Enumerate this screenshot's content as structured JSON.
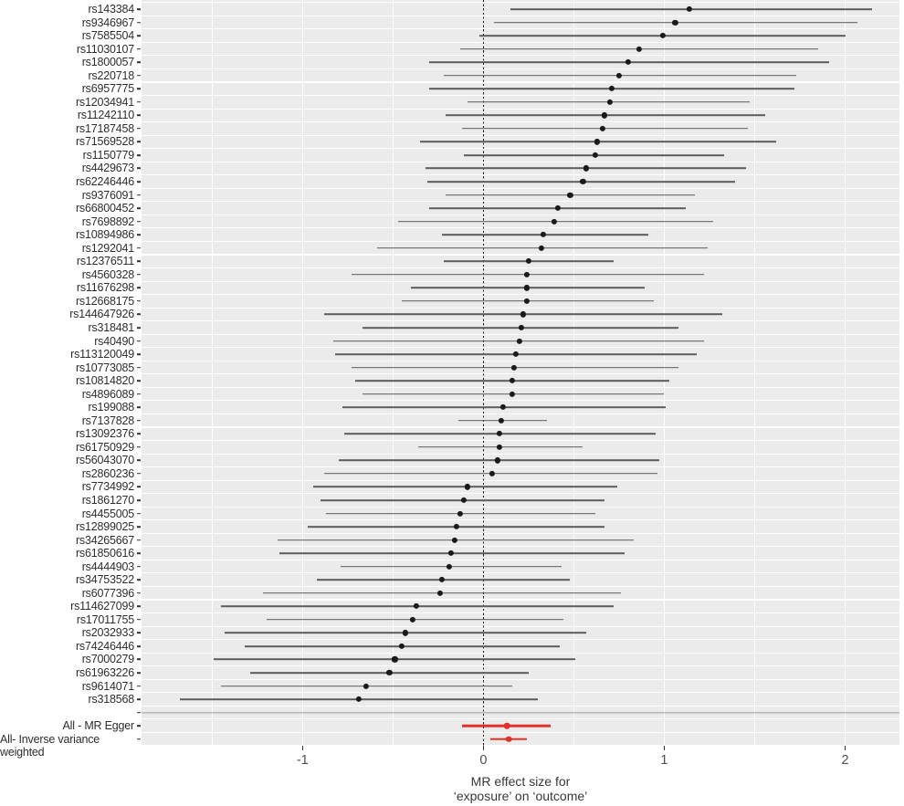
{
  "figure": {
    "kind": "mendelian-randomization-forest-plot",
    "colors": {
      "page_background": "#ffffff",
      "panel_background": "#ebebeb",
      "grid": "#ffffff",
      "ci_line": "#5c5c5c",
      "point": "#1a1a1a",
      "highlight": "#e0312b",
      "separator": "#9b9b9b",
      "zero_line": "#151515",
      "axis_text": "#4d4d4d",
      "label_text": "#2e2e2e"
    }
  },
  "chart_data": {
    "type": "scatter",
    "variant": "horizontal-forest-plot-with-error-bars",
    "title": "",
    "xlabel_lines": [
      "MR effect size for",
      "‘exposure’ on ‘outcome’"
    ],
    "ylabel": "",
    "x_ticks": [
      -1,
      0,
      1,
      2
    ],
    "xlim": [
      -1.89,
      2.3
    ],
    "zero_reference_line": 0,
    "grid": "on",
    "legend": "none",
    "rows": [
      {
        "label": "rs143384",
        "b": 1.14,
        "lo": 0.15,
        "hi": 2.15,
        "group": "snp"
      },
      {
        "label": "rs9346967",
        "b": 1.06,
        "lo": 0.06,
        "hi": 2.07,
        "group": "snp"
      },
      {
        "label": "rs7585504",
        "b": 0.99,
        "lo": -0.02,
        "hi": 2.0,
        "group": "snp"
      },
      {
        "label": "rs11030107",
        "b": 0.86,
        "lo": -0.13,
        "hi": 1.85,
        "group": "snp"
      },
      {
        "label": "rs1800057",
        "b": 0.8,
        "lo": -0.3,
        "hi": 1.91,
        "group": "snp"
      },
      {
        "label": "rs220718",
        "b": 0.75,
        "lo": -0.22,
        "hi": 1.73,
        "group": "snp"
      },
      {
        "label": "rs6957775",
        "b": 0.71,
        "lo": -0.3,
        "hi": 1.72,
        "group": "snp"
      },
      {
        "label": "rs12034941",
        "b": 0.7,
        "lo": -0.09,
        "hi": 1.47,
        "group": "snp"
      },
      {
        "label": "rs11242110",
        "b": 0.67,
        "lo": -0.21,
        "hi": 1.56,
        "group": "snp"
      },
      {
        "label": "rs17187458",
        "b": 0.66,
        "lo": -0.12,
        "hi": 1.46,
        "group": "snp"
      },
      {
        "label": "rs71569528",
        "b": 0.63,
        "lo": -0.35,
        "hi": 1.62,
        "group": "snp"
      },
      {
        "label": "rs1150779",
        "b": 0.62,
        "lo": -0.11,
        "hi": 1.33,
        "group": "snp"
      },
      {
        "label": "rs4429673",
        "b": 0.57,
        "lo": -0.32,
        "hi": 1.45,
        "group": "snp"
      },
      {
        "label": "rs62246446",
        "b": 0.55,
        "lo": -0.31,
        "hi": 1.39,
        "group": "snp"
      },
      {
        "label": "rs9376091",
        "b": 0.48,
        "lo": -0.21,
        "hi": 1.17,
        "group": "snp"
      },
      {
        "label": "rs66800452",
        "b": 0.41,
        "lo": -0.3,
        "hi": 1.12,
        "group": "snp"
      },
      {
        "label": "rs7698892",
        "b": 0.39,
        "lo": -0.47,
        "hi": 1.27,
        "group": "snp"
      },
      {
        "label": "rs10894986",
        "b": 0.33,
        "lo": -0.23,
        "hi": 0.91,
        "group": "snp"
      },
      {
        "label": "rs1292041",
        "b": 0.32,
        "lo": -0.59,
        "hi": 1.24,
        "group": "snp"
      },
      {
        "label": "rs12376511",
        "b": 0.25,
        "lo": -0.22,
        "hi": 0.72,
        "group": "snp"
      },
      {
        "label": "rs4560328",
        "b": 0.24,
        "lo": -0.73,
        "hi": 1.22,
        "group": "snp"
      },
      {
        "label": "rs11676298",
        "b": 0.24,
        "lo": -0.4,
        "hi": 0.89,
        "group": "snp"
      },
      {
        "label": "rs12668175",
        "b": 0.24,
        "lo": -0.45,
        "hi": 0.94,
        "group": "snp"
      },
      {
        "label": "rs144647926",
        "b": 0.22,
        "lo": -0.88,
        "hi": 1.32,
        "group": "snp"
      },
      {
        "label": "rs318481",
        "b": 0.21,
        "lo": -0.67,
        "hi": 1.08,
        "group": "snp"
      },
      {
        "label": "rs40490",
        "b": 0.2,
        "lo": -0.83,
        "hi": 1.22,
        "group": "snp"
      },
      {
        "label": "rs113120049",
        "b": 0.18,
        "lo": -0.82,
        "hi": 1.18,
        "group": "snp"
      },
      {
        "label": "rs10773085",
        "b": 0.17,
        "lo": -0.73,
        "hi": 1.08,
        "group": "snp"
      },
      {
        "label": "rs10814820",
        "b": 0.16,
        "lo": -0.71,
        "hi": 1.03,
        "group": "snp"
      },
      {
        "label": "rs4896089",
        "b": 0.16,
        "lo": -0.67,
        "hi": 1.0,
        "group": "snp"
      },
      {
        "label": "rs199088",
        "b": 0.11,
        "lo": -0.78,
        "hi": 1.01,
        "group": "snp"
      },
      {
        "label": "rs7137828",
        "b": 0.1,
        "lo": -0.14,
        "hi": 0.35,
        "group": "snp"
      },
      {
        "label": "rs13092376",
        "b": 0.09,
        "lo": -0.77,
        "hi": 0.95,
        "group": "snp"
      },
      {
        "label": "rs61750929",
        "b": 0.09,
        "lo": -0.36,
        "hi": 0.55,
        "group": "snp"
      },
      {
        "label": "rs56043070",
        "b": 0.08,
        "lo": -0.8,
        "hi": 0.97,
        "group": "snp"
      },
      {
        "label": "rs2860236",
        "b": 0.05,
        "lo": -0.88,
        "hi": 0.96,
        "group": "snp"
      },
      {
        "label": "rs7734992",
        "b": -0.09,
        "lo": -0.94,
        "hi": 0.74,
        "group": "snp"
      },
      {
        "label": "rs1861270",
        "b": -0.11,
        "lo": -0.9,
        "hi": 0.67,
        "group": "snp"
      },
      {
        "label": "rs4455005",
        "b": -0.13,
        "lo": -0.87,
        "hi": 0.62,
        "group": "snp"
      },
      {
        "label": "rs12899025",
        "b": -0.15,
        "lo": -0.97,
        "hi": 0.67,
        "group": "snp"
      },
      {
        "label": "rs34265667",
        "b": -0.16,
        "lo": -1.14,
        "hi": 0.83,
        "group": "snp"
      },
      {
        "label": "rs61850616",
        "b": -0.18,
        "lo": -1.13,
        "hi": 0.78,
        "group": "snp"
      },
      {
        "label": "rs4444903",
        "b": -0.19,
        "lo": -0.79,
        "hi": 0.43,
        "group": "snp"
      },
      {
        "label": "rs34753522",
        "b": -0.23,
        "lo": -0.92,
        "hi": 0.48,
        "group": "snp"
      },
      {
        "label": "rs6077396",
        "b": -0.24,
        "lo": -1.22,
        "hi": 0.76,
        "group": "snp"
      },
      {
        "label": "rs114627099",
        "b": -0.37,
        "lo": -1.45,
        "hi": 0.72,
        "group": "snp"
      },
      {
        "label": "rs17011755",
        "b": -0.39,
        "lo": -1.2,
        "hi": 0.44,
        "group": "snp"
      },
      {
        "label": "rs2032933",
        "b": -0.43,
        "lo": -1.43,
        "hi": 0.57,
        "group": "snp"
      },
      {
        "label": "rs74246446",
        "b": -0.45,
        "lo": -1.32,
        "hi": 0.42,
        "group": "snp"
      },
      {
        "label": "rs7000279",
        "b": -0.49,
        "lo": -1.49,
        "hi": 0.51,
        "group": "snp"
      },
      {
        "label": "rs61963226",
        "b": -0.52,
        "lo": -1.29,
        "hi": 0.25,
        "group": "snp"
      },
      {
        "label": "rs9614071",
        "b": -0.65,
        "lo": -1.45,
        "hi": 0.16,
        "group": "snp"
      },
      {
        "label": "rs318568",
        "b": -0.69,
        "lo": -1.68,
        "hi": 0.3,
        "group": "snp"
      },
      {
        "label": "",
        "group": "separator"
      },
      {
        "label": "All - MR Egger",
        "b": 0.13,
        "lo": -0.12,
        "hi": 0.37,
        "group": "all"
      },
      {
        "label": "All- Inverse variance\nweighted",
        "b": 0.14,
        "lo": 0.04,
        "hi": 0.24,
        "group": "all",
        "label_align": "left"
      }
    ]
  }
}
